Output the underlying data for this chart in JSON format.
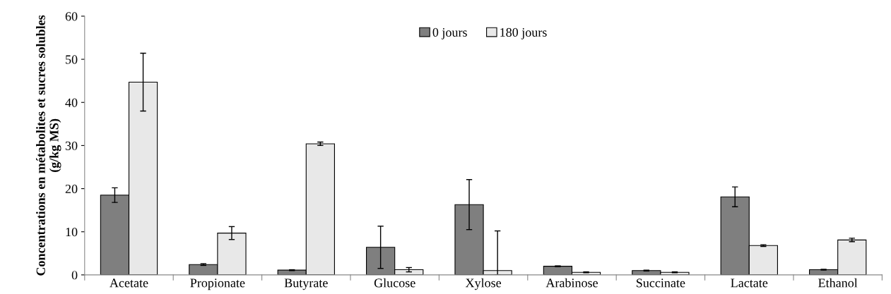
{
  "chart_data": {
    "type": "bar",
    "ylabel": "Concentrations en métabolites et sucres solubles (g/kg MS)",
    "categories": [
      "Acetate",
      "Propionate",
      "Butyrate",
      "Glucose",
      "Xylose",
      "Arabinose",
      "Succinate",
      "Lactate",
      "Ethanol"
    ],
    "series": [
      {
        "name": "0 jours",
        "color": "#7f7f7f",
        "values": [
          18.5,
          2.4,
          1.1,
          6.4,
          16.3,
          2.0,
          1.0,
          18.1,
          1.2
        ],
        "errors": [
          1.7,
          0.2,
          0.1,
          4.9,
          5.8,
          0.1,
          0.1,
          2.3,
          0.1
        ]
      },
      {
        "name": "180 jours",
        "color": "#e8e8e8",
        "values": [
          44.7,
          9.7,
          30.4,
          1.2,
          1.0,
          0.6,
          0.6,
          6.8,
          8.1
        ],
        "errors": [
          6.7,
          1.5,
          0.4,
          0.5,
          [
            0,
            10.2
          ],
          0.1,
          0.1,
          0.2,
          0.4
        ]
      }
    ],
    "ylim": [
      0,
      60
    ],
    "yticks": [
      0,
      10,
      20,
      30,
      40,
      50,
      60
    ],
    "grid": false,
    "legend": "top"
  }
}
